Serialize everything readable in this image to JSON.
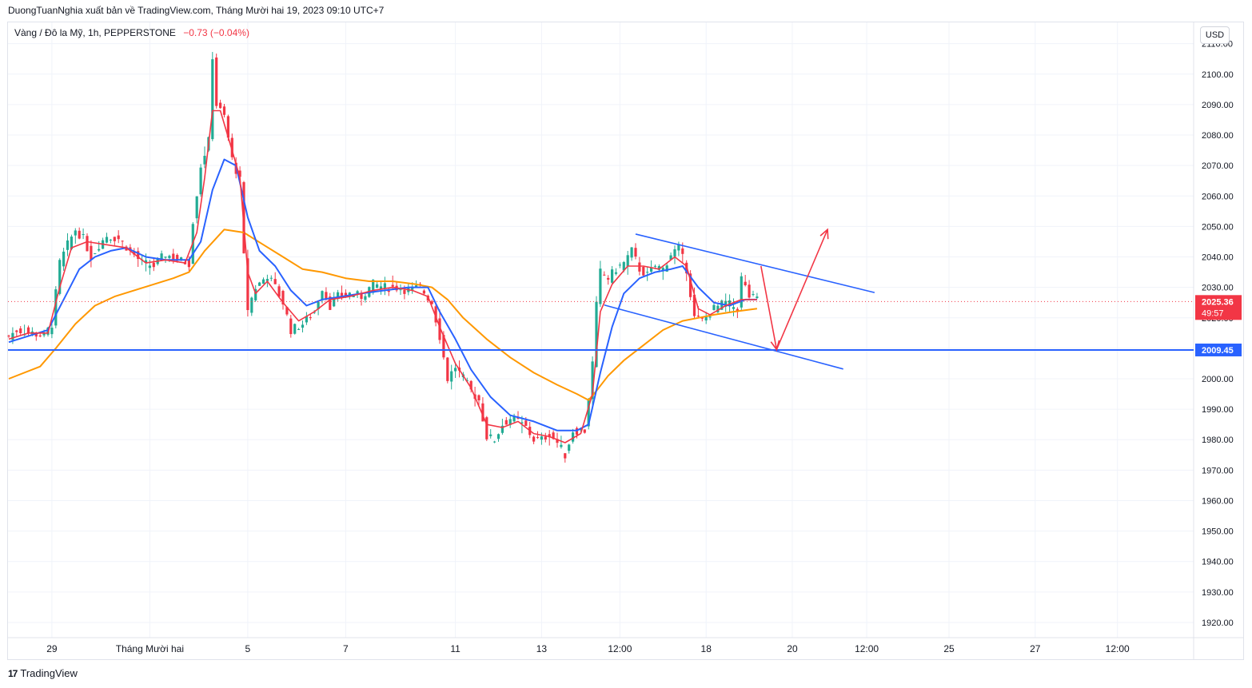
{
  "header": {
    "publisher_line": "DuongTuanNghia xuất bản về TradingView.com, Tháng Mười hai 19, 2023 09:10 UTC+7"
  },
  "legend": {
    "symbol": "Vàng / Đô la Mỹ, 1h, PEPPERSTONE",
    "change": "−0.73 (−0.04%)"
  },
  "currency_button": "USD",
  "footer": {
    "logo": "17",
    "brand": "TradingView"
  },
  "colors": {
    "up": "#22ab94",
    "down": "#f23645",
    "ma_fast": "#f23645",
    "ma_mid": "#2962ff",
    "ma_slow": "#ff9800",
    "drawing_line": "#2962ff",
    "arrow": "#f23645",
    "grid": "#f0f3fa"
  },
  "chart_data": {
    "type": "candlestick",
    "symbol": "XAUUSD",
    "timeframe": "1h",
    "ylim": [
      1915,
      2117
    ],
    "y_ticks": [
      2110,
      2100,
      2090,
      2080,
      2070,
      2060,
      2050,
      2040,
      2030,
      2020,
      2010,
      2000,
      1990,
      1980,
      1970,
      1960,
      1950,
      1940,
      1930,
      1920
    ],
    "x_tick_labels": [
      "29",
      "Tháng Mười hai",
      "5",
      "7",
      "11",
      "13",
      "12:00",
      "18",
      "20",
      "12:00",
      "25",
      "27",
      "12:00"
    ],
    "x_tick_index": [
      11,
      36,
      61,
      86,
      114,
      136,
      156,
      178,
      200,
      219,
      240,
      262,
      283
    ],
    "price_path": [
      [
        0,
        2014
      ],
      [
        2,
        2016
      ],
      [
        6,
        2015
      ],
      [
        9,
        2014
      ],
      [
        11,
        2018
      ],
      [
        13,
        2038
      ],
      [
        15,
        2044
      ],
      [
        17,
        2049
      ],
      [
        19,
        2046
      ],
      [
        21,
        2040
      ],
      [
        23,
        2044
      ],
      [
        25,
        2047
      ],
      [
        28,
        2046
      ],
      [
        31,
        2042
      ],
      [
        34,
        2038
      ],
      [
        37,
        2037
      ],
      [
        40,
        2041
      ],
      [
        43,
        2039
      ],
      [
        46,
        2038
      ],
      [
        47,
        2052
      ],
      [
        49,
        2070
      ],
      [
        51,
        2078
      ],
      [
        52,
        2106
      ],
      [
        53,
        2090
      ],
      [
        55,
        2086
      ],
      [
        57,
        2072
      ],
      [
        59,
        2065
      ],
      [
        60,
        2040
      ],
      [
        61,
        2023
      ],
      [
        63,
        2030
      ],
      [
        66,
        2034
      ],
      [
        68,
        2030
      ],
      [
        70,
        2025
      ],
      [
        72,
        2016
      ],
      [
        75,
        2018
      ],
      [
        78,
        2022
      ],
      [
        80,
        2030
      ],
      [
        82,
        2024
      ],
      [
        84,
        2027
      ],
      [
        87,
        2028
      ],
      [
        90,
        2027
      ],
      [
        93,
        2031
      ],
      [
        96,
        2030
      ],
      [
        99,
        2030
      ],
      [
        102,
        2029
      ],
      [
        105,
        2030
      ],
      [
        108,
        2025
      ],
      [
        110,
        2014
      ],
      [
        112,
        2000
      ],
      [
        114,
        2004
      ],
      [
        116,
        2000
      ],
      [
        118,
        1996
      ],
      [
        120,
        1993
      ],
      [
        122,
        1981
      ],
      [
        124,
        1980
      ],
      [
        126,
        1985
      ],
      [
        128,
        1987
      ],
      [
        130,
        1986
      ],
      [
        132,
        1984
      ],
      [
        134,
        1980
      ],
      [
        136,
        1980
      ],
      [
        138,
        1982
      ],
      [
        140,
        1979
      ],
      [
        142,
        1975
      ],
      [
        144,
        1983
      ],
      [
        147,
        1983
      ],
      [
        149,
        2005
      ],
      [
        150,
        2024
      ],
      [
        151,
        2035
      ],
      [
        153,
        2033
      ],
      [
        155,
        2036
      ],
      [
        157,
        2038
      ],
      [
        159,
        2042
      ],
      [
        161,
        2036
      ],
      [
        163,
        2034
      ],
      [
        165,
        2037
      ],
      [
        167,
        2036
      ],
      [
        169,
        2041
      ],
      [
        171,
        2043
      ],
      [
        173,
        2036
      ],
      [
        175,
        2020
      ],
      [
        177,
        2019
      ],
      [
        180,
        2023
      ],
      [
        183,
        2025
      ],
      [
        186,
        2023
      ],
      [
        187,
        2033
      ],
      [
        189,
        2027
      ],
      [
        191,
        2026
      ]
    ],
    "ma_fast_path": [
      [
        0,
        2013
      ],
      [
        5,
        2015
      ],
      [
        10,
        2015
      ],
      [
        13,
        2030
      ],
      [
        16,
        2043
      ],
      [
        20,
        2045
      ],
      [
        25,
        2044
      ],
      [
        30,
        2043
      ],
      [
        35,
        2038
      ],
      [
        40,
        2039
      ],
      [
        45,
        2038
      ],
      [
        48,
        2048
      ],
      [
        50,
        2066
      ],
      [
        52,
        2088
      ],
      [
        54,
        2088
      ],
      [
        57,
        2075
      ],
      [
        59,
        2066
      ],
      [
        61,
        2035
      ],
      [
        63,
        2028
      ],
      [
        66,
        2032
      ],
      [
        70,
        2025
      ],
      [
        74,
        2019
      ],
      [
        78,
        2022
      ],
      [
        82,
        2026
      ],
      [
        87,
        2027
      ],
      [
        93,
        2029
      ],
      [
        98,
        2030
      ],
      [
        103,
        2029
      ],
      [
        107,
        2027
      ],
      [
        110,
        2017
      ],
      [
        114,
        2005
      ],
      [
        118,
        1997
      ],
      [
        122,
        1985
      ],
      [
        126,
        1984
      ],
      [
        130,
        1986
      ],
      [
        134,
        1982
      ],
      [
        138,
        1981
      ],
      [
        142,
        1979
      ],
      [
        146,
        1982
      ],
      [
        149,
        1995
      ],
      [
        151,
        2022
      ],
      [
        154,
        2031
      ],
      [
        158,
        2037
      ],
      [
        162,
        2037
      ],
      [
        166,
        2036
      ],
      [
        170,
        2040
      ],
      [
        173,
        2037
      ],
      [
        176,
        2023
      ],
      [
        179,
        2021
      ],
      [
        183,
        2024
      ],
      [
        187,
        2026
      ],
      [
        191,
        2026
      ]
    ],
    "ma_mid_path": [
      [
        0,
        2012
      ],
      [
        5,
        2014
      ],
      [
        10,
        2016
      ],
      [
        14,
        2026
      ],
      [
        18,
        2036
      ],
      [
        22,
        2040
      ],
      [
        26,
        2042
      ],
      [
        30,
        2043
      ],
      [
        35,
        2040
      ],
      [
        40,
        2039
      ],
      [
        46,
        2039
      ],
      [
        49,
        2045
      ],
      [
        52,
        2062
      ],
      [
        55,
        2072
      ],
      [
        58,
        2070
      ],
      [
        61,
        2053
      ],
      [
        64,
        2042
      ],
      [
        68,
        2037
      ],
      [
        72,
        2029
      ],
      [
        76,
        2024
      ],
      [
        80,
        2026
      ],
      [
        85,
        2027
      ],
      [
        90,
        2028
      ],
      [
        96,
        2029
      ],
      [
        102,
        2030
      ],
      [
        107,
        2030
      ],
      [
        110,
        2022
      ],
      [
        114,
        2013
      ],
      [
        118,
        2003
      ],
      [
        123,
        1994
      ],
      [
        128,
        1988
      ],
      [
        134,
        1986
      ],
      [
        140,
        1983
      ],
      [
        145,
        1983
      ],
      [
        148,
        1985
      ],
      [
        151,
        2002
      ],
      [
        154,
        2017
      ],
      [
        157,
        2028
      ],
      [
        161,
        2033
      ],
      [
        165,
        2035
      ],
      [
        169,
        2036
      ],
      [
        172,
        2037
      ],
      [
        176,
        2030
      ],
      [
        180,
        2025
      ],
      [
        184,
        2024
      ],
      [
        188,
        2026
      ],
      [
        191,
        2026
      ]
    ],
    "ma_slow_path": [
      [
        0,
        2000
      ],
      [
        8,
        2004
      ],
      [
        12,
        2010
      ],
      [
        17,
        2018
      ],
      [
        22,
        2024
      ],
      [
        27,
        2027
      ],
      [
        32,
        2029
      ],
      [
        37,
        2031
      ],
      [
        42,
        2033
      ],
      [
        46,
        2035
      ],
      [
        50,
        2042
      ],
      [
        55,
        2049
      ],
      [
        60,
        2048
      ],
      [
        65,
        2044
      ],
      [
        70,
        2040
      ],
      [
        75,
        2036
      ],
      [
        80,
        2035
      ],
      [
        86,
        2033
      ],
      [
        92,
        2032
      ],
      [
        98,
        2032
      ],
      [
        104,
        2031
      ],
      [
        108,
        2030
      ],
      [
        112,
        2026
      ],
      [
        116,
        2020
      ],
      [
        122,
        2013
      ],
      [
        128,
        2007
      ],
      [
        134,
        2002
      ],
      [
        140,
        1998
      ],
      [
        145,
        1995
      ],
      [
        148,
        1993
      ],
      [
        150,
        1996
      ],
      [
        153,
        2001
      ],
      [
        157,
        2006
      ],
      [
        162,
        2011
      ],
      [
        167,
        2016
      ],
      [
        172,
        2019
      ],
      [
        176,
        2020
      ],
      [
        180,
        2021
      ],
      [
        185,
        2022
      ],
      [
        191,
        2023
      ]
    ],
    "horizontal_line": {
      "price": 2009.45,
      "label": "2009.45"
    },
    "last_price": {
      "price": 2025.36,
      "label": "2025.36",
      "countdown": "49:57"
    },
    "channel_lines": [
      {
        "from": [
          160,
          2047.5
        ],
        "to": [
          221,
          2028.3
        ]
      },
      {
        "from": [
          152,
          2024.2
        ],
        "to": [
          213,
          2003.2
        ]
      }
    ],
    "projection_arrow": [
      [
        192,
        2037
      ],
      [
        196,
        2009.6
      ],
      [
        209,
        2049
      ]
    ]
  }
}
